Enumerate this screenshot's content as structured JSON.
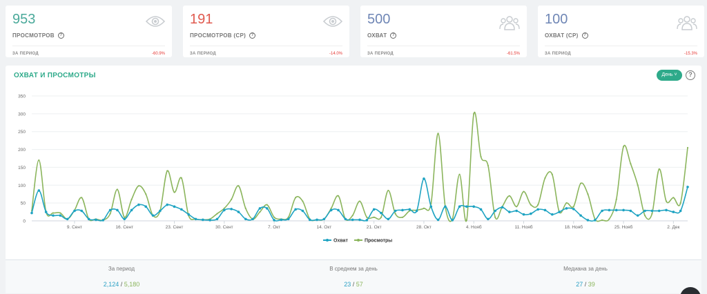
{
  "cards": [
    {
      "value": "953",
      "value_color": "#4aa99a",
      "label": "ПРОСМОТРОВ",
      "period": "ЗА ПЕРИОД",
      "change": "-60.9%",
      "icon": "eye-icon"
    },
    {
      "value": "191",
      "value_color": "#e05a4f",
      "label": "ПРОСМОТРОВ (СР)",
      "period": "ЗА ПЕРИОД",
      "change": "-14.0%",
      "icon": "eye-icon"
    },
    {
      "value": "500",
      "value_color": "#6f86b5",
      "label": "ОХВАТ",
      "period": "ЗА ПЕРИОД",
      "change": "-61.5%",
      "icon": "users-icon"
    },
    {
      "value": "100",
      "value_color": "#6f86b5",
      "label": "ОХВАТ (СР)",
      "period": "ЗА ПЕРИОД",
      "change": "-15.3%",
      "icon": "users-icon"
    }
  ],
  "panel": {
    "title": "ОХВАТ И ПРОСМОТРЫ",
    "period_button": "День",
    "help": "?"
  },
  "chart_data": {
    "type": "line",
    "ylim": [
      0,
      350
    ],
    "yticks": [
      0,
      50,
      100,
      150,
      200,
      250,
      300,
      350
    ],
    "grid": true,
    "legend_position": "bottom",
    "x_tick_labels": [
      {
        "label": "9. Сент",
        "day": 6
      },
      {
        "label": "16. Сент",
        "day": 13
      },
      {
        "label": "23. Сент",
        "day": 20
      },
      {
        "label": "30. Сент",
        "day": 27
      },
      {
        "label": "7. Окт",
        "day": 34
      },
      {
        "label": "14. Окт",
        "day": 41
      },
      {
        "label": "21. Окт",
        "day": 48
      },
      {
        "label": "28. Окт",
        "day": 55
      },
      {
        "label": "4. Нояб",
        "day": 62
      },
      {
        "label": "11. Нояб",
        "day": 69
      },
      {
        "label": "18. Нояб",
        "day": 76
      },
      {
        "label": "25. Нояб",
        "day": 83
      },
      {
        "label": "2. Дек",
        "day": 90
      }
    ],
    "series": [
      {
        "name": "Охват",
        "color": "#1ea3c2",
        "values": [
          22,
          85,
          25,
          15,
          15,
          5,
          28,
          28,
          5,
          3,
          2,
          30,
          30,
          5,
          30,
          45,
          40,
          15,
          28,
          45,
          40,
          32,
          18,
          5,
          3,
          2,
          5,
          30,
          33,
          25,
          5,
          5,
          35,
          35,
          2,
          3,
          5,
          32,
          28,
          3,
          3,
          5,
          30,
          30,
          5,
          3,
          3,
          2,
          32,
          22,
          5,
          28,
          30,
          32,
          28,
          118,
          40,
          3,
          40,
          2,
          40,
          40,
          40,
          32,
          5,
          28,
          38,
          25,
          28,
          18,
          20,
          32,
          30,
          18,
          25,
          35,
          33,
          15,
          2,
          2,
          28,
          30,
          30,
          30,
          28,
          15,
          28,
          28,
          28,
          30,
          25,
          28,
          95
        ]
      },
      {
        "name": "Просмотры",
        "color": "#8bb55c",
        "values": [
          28,
          170,
          25,
          22,
          22,
          5,
          30,
          65,
          5,
          5,
          2,
          20,
          88,
          10,
          60,
          98,
          75,
          15,
          28,
          140,
          80,
          120,
          15,
          5,
          3,
          5,
          20,
          35,
          60,
          98,
          35,
          5,
          25,
          45,
          10,
          5,
          10,
          65,
          55,
          5,
          3,
          5,
          35,
          70,
          5,
          15,
          55,
          10,
          10,
          10,
          85,
          20,
          10,
          28,
          30,
          35,
          48,
          245,
          40,
          5,
          130,
          2,
          300,
          180,
          155,
          10,
          40,
          70,
          40,
          82,
          45,
          45,
          120,
          130,
          25,
          50,
          40,
          105,
          75,
          5,
          2,
          5,
          60,
          208,
          160,
          100,
          15,
          20,
          145,
          55,
          65,
          50,
          205
        ]
      }
    ]
  },
  "stats": [
    {
      "label": "За период",
      "reach": "2,124",
      "views": "5,180"
    },
    {
      "label": "В среднем за день",
      "reach": "23",
      "views": "57"
    },
    {
      "label": "Медиана за день",
      "reach": "27",
      "views": "39"
    }
  ]
}
